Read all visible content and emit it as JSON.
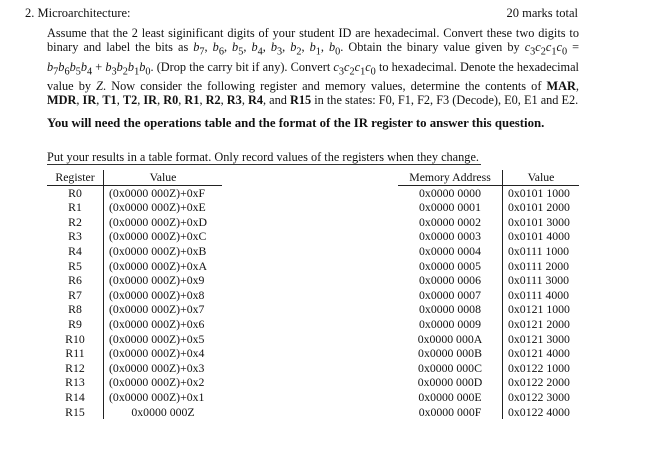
{
  "question": {
    "number": "2.",
    "title": "Microarchitecture:",
    "marks": "20 marks total",
    "paragraph_html": "Assume that the 2 least siginificant digits of your student ID are hexadecimal. Convert these two digits to binary and label the bits as <i>b</i><sub>7</sub>, <i>b</i><sub>6</sub>, <i>b</i><sub>5</sub>, <i>b</i><sub>4</sub>, <i>b</i><sub>3</sub>, <i>b</i><sub>2</sub>, <i>b</i><sub>1</sub>, <i>b</i><sub>0</sub>. Obtain the binary value given by <i>c</i><sub>3</sub><i>c</i><sub>2</sub><i>c</i><sub>1</sub><i>c</i><sub>0</sub> = <i>b</i><sub>7</sub><i>b</i><sub>6</sub><i>b</i><sub>5</sub><i>b</i><sub>4</sub> + <i>b</i><sub>3</sub><i>b</i><sub>2</sub><i>b</i><sub>1</sub><i>b</i><sub>0</sub>. (Drop the carry bit if any). Convert <i>c</i><sub>3</sub><i>c</i><sub>2</sub><i>c</i><sub>1</sub><i>c</i><sub>0</sub> to hexadecimal. Denote the hexadecimal value by <i>Z</i>. Now consider the following register and memory values, determine the contents of <b>MAR</b>, <b>MDR</b>, <b>IR</b>, <b>T1</b>, <b>T2</b>, <b>IR</b>, <b>R0</b>, <b>R1</b>, <b>R2</b>, <b>R3</b>, <b>R4</b>, and <b>R15</b> in the states: F0, F1, F2, F3 (Decode), E0, E1 and E2.",
    "bold_note": "You will need the operations table and the format of the IR register to answer this question.",
    "instruction": "Put your results in a table format. Only record values of the registers when they change."
  },
  "register_table": {
    "headers": [
      "Register",
      "Value"
    ],
    "rows": [
      [
        "R0",
        "(0x0000 000Z)+0xF"
      ],
      [
        "R1",
        "(0x0000 000Z)+0xE"
      ],
      [
        "R2",
        "(0x0000 000Z)+0xD"
      ],
      [
        "R3",
        "(0x0000 000Z)+0xC"
      ],
      [
        "R4",
        "(0x0000 000Z)+0xB"
      ],
      [
        "R5",
        "(0x0000 000Z)+0xA"
      ],
      [
        "R6",
        "(0x0000 000Z)+0x9"
      ],
      [
        "R7",
        "(0x0000 000Z)+0x8"
      ],
      [
        "R8",
        "(0x0000 000Z)+0x7"
      ],
      [
        "R9",
        "(0x0000 000Z)+0x6"
      ],
      [
        "R10",
        "(0x0000 000Z)+0x5"
      ],
      [
        "R11",
        "(0x0000 000Z)+0x4"
      ],
      [
        "R12",
        "(0x0000 000Z)+0x3"
      ],
      [
        "R13",
        "(0x0000 000Z)+0x2"
      ],
      [
        "R14",
        "(0x0000 000Z)+0x1"
      ],
      [
        "R15",
        "0x0000 000Z"
      ]
    ]
  },
  "memory_table": {
    "headers": [
      "Memory Address",
      "Value"
    ],
    "rows": [
      [
        "0x0000 0000",
        "0x0101 1000"
      ],
      [
        "0x0000 0001",
        "0x0101 2000"
      ],
      [
        "0x0000 0002",
        "0x0101 3000"
      ],
      [
        "0x0000 0003",
        "0x0101 4000"
      ],
      [
        "0x0000 0004",
        "0x0111 1000"
      ],
      [
        "0x0000 0005",
        "0x0111 2000"
      ],
      [
        "0x0000 0006",
        "0x0111 3000"
      ],
      [
        "0x0000 0007",
        "0x0111 4000"
      ],
      [
        "0x0000 0008",
        "0x0121 1000"
      ],
      [
        "0x0000 0009",
        "0x0121 2000"
      ],
      [
        "0x0000 000A",
        "0x0121 3000"
      ],
      [
        "0x0000 000B",
        "0x0121 4000"
      ],
      [
        "0x0000 000C",
        "0x0122 1000"
      ],
      [
        "0x0000 000D",
        "0x0122 2000"
      ],
      [
        "0x0000 000E",
        "0x0122 3000"
      ],
      [
        "0x0000 000F",
        "0x0122 4000"
      ]
    ]
  }
}
